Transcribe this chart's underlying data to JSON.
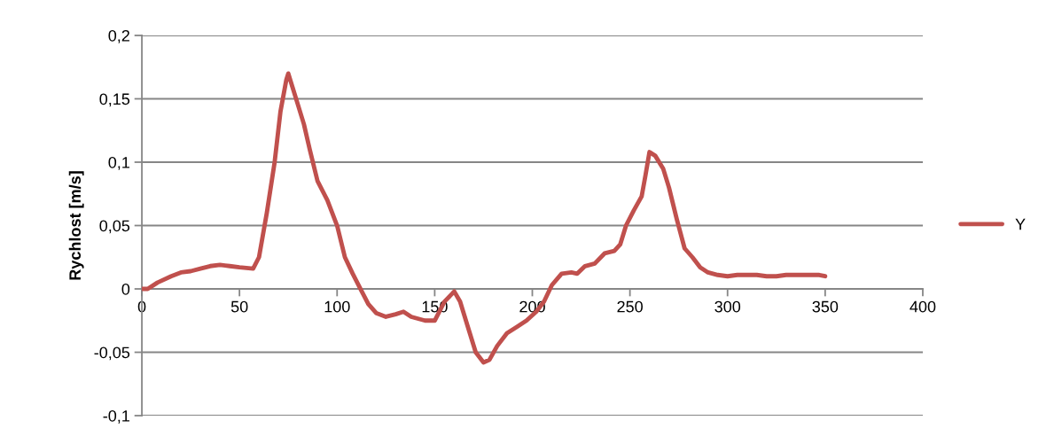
{
  "chart_data": {
    "type": "line",
    "ylabel": "Rychlost [m/s]",
    "xlim": [
      0,
      400
    ],
    "xticks": [
      0,
      50,
      100,
      150,
      200,
      250,
      300,
      350,
      400
    ],
    "ylim": [
      -0.1,
      0.2
    ],
    "yticks": [
      {
        "value": -0.1,
        "label": "-0,1"
      },
      {
        "value": -0.05,
        "label": "-0,05"
      },
      {
        "value": 0,
        "label": "0"
      },
      {
        "value": 0.05,
        "label": "0,05"
      },
      {
        "value": 0.1,
        "label": "0,1"
      },
      {
        "value": 0.15,
        "label": "0,15"
      },
      {
        "value": 0.2,
        "label": "0,2"
      }
    ],
    "grid": "y",
    "legend": "right",
    "marker": "none",
    "line_style": "solid",
    "series": [
      {
        "name": "Y",
        "color": "#c0504d",
        "x": [
          0,
          3,
          8,
          15,
          20,
          25,
          30,
          35,
          40,
          45,
          50,
          57,
          60,
          64,
          68,
          71,
          74,
          75,
          77,
          80,
          83,
          86,
          90,
          95,
          100,
          104,
          108,
          112,
          116,
          120,
          125,
          130,
          134,
          138,
          145,
          150,
          155,
          160,
          163,
          167,
          171,
          175,
          178,
          182,
          187,
          192,
          197,
          202,
          206,
          210,
          215,
          220,
          223,
          227,
          232,
          237,
          242,
          245,
          248,
          252,
          256,
          258,
          260,
          263,
          267,
          270,
          274,
          278,
          282,
          286,
          290,
          295,
          300,
          305,
          310,
          315,
          320,
          325,
          330,
          340,
          347,
          350
        ],
        "values": [
          0,
          0,
          0.005,
          0.01,
          0.013,
          0.014,
          0.016,
          0.018,
          0.019,
          0.018,
          0.017,
          0.016,
          0.025,
          0.06,
          0.1,
          0.14,
          0.165,
          0.17,
          0.16,
          0.145,
          0.13,
          0.11,
          0.085,
          0.07,
          0.05,
          0.025,
          0.012,
          0.0,
          -0.012,
          -0.019,
          -0.022,
          -0.02,
          -0.018,
          -0.022,
          -0.025,
          -0.025,
          -0.01,
          -0.002,
          -0.01,
          -0.03,
          -0.05,
          -0.058,
          -0.056,
          -0.045,
          -0.035,
          -0.03,
          -0.025,
          -0.018,
          -0.01,
          0.003,
          0.012,
          0.013,
          0.012,
          0.018,
          0.02,
          0.028,
          0.03,
          0.035,
          0.05,
          0.062,
          0.073,
          0.09,
          0.108,
          0.105,
          0.095,
          0.08,
          0.055,
          0.032,
          0.025,
          0.017,
          0.013,
          0.011,
          0.01,
          0.011,
          0.011,
          0.011,
          0.01,
          0.01,
          0.011,
          0.011,
          0.011,
          0.01
        ]
      }
    ]
  }
}
